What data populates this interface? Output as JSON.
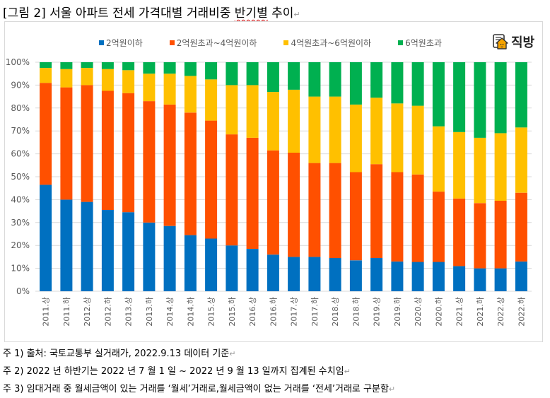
{
  "title": {
    "text": "[그림 2] 서울 아파트 전세 가격대별 거래비중",
    "squiggle_text": "반기별",
    "tail": " 추이"
  },
  "logo": {
    "text": "직방",
    "icon": "house-logo-icon"
  },
  "notes": [
    "주 1) 출처: 국토교통부 실거래가, 2022.9.13  데이터 기준",
    "주 2) 2022 년 하반기는 2022 년 7 월 1 일 ~ 2022 년 9 월 13 일까지 집계된 수치임",
    "주 3) 임대거래 중 월세금액이 있는 거래를 ‘월세’거래로,월세금액이 없는 거래를 ‘전세’거래로 구분함"
  ],
  "paragraph_mark": "↵",
  "chart_data": {
    "type": "bar",
    "stacked": true,
    "percent": true,
    "title": "",
    "xlabel": "",
    "ylabel": "",
    "ylim": [
      0,
      100
    ],
    "yticks": [
      "0%",
      "10%",
      "20%",
      "30%",
      "40%",
      "50%",
      "60%",
      "70%",
      "80%",
      "90%",
      "100%"
    ],
    "grid": true,
    "legend_position": "top",
    "categories": [
      "2011.상",
      "2011.하",
      "2012.상",
      "2012.하",
      "2013.상",
      "2013.하",
      "2014.상",
      "2014.하",
      "2015.상",
      "2015.하",
      "2016.상",
      "2016.하",
      "2017.상",
      "2017.하",
      "2018.상",
      "2018.하",
      "2019.상",
      "2019.하",
      "2020.상",
      "2020.하",
      "2021.상",
      "2021.하",
      "2022.상",
      "2022.하"
    ],
    "series": [
      {
        "name": "2억원이하",
        "color": "#0070C0",
        "values": [
          46.5,
          40,
          39,
          35.5,
          34.5,
          30,
          28.5,
          24.5,
          23,
          20,
          18.5,
          16,
          15,
          15,
          14.5,
          13.5,
          14.5,
          13,
          12.8,
          12.8,
          11,
          10,
          10,
          13
        ]
      },
      {
        "name": "2억원초과~4억원이하",
        "color": "#FF5000",
        "values": [
          44.5,
          49,
          51,
          52,
          52,
          53,
          53,
          53.5,
          51.5,
          48.5,
          48.5,
          45.5,
          45.5,
          41,
          41.5,
          38.5,
          41,
          39,
          38.2,
          30.7,
          29.5,
          28.5,
          29.5,
          30
        ]
      },
      {
        "name": "4억원초과~6억원이하",
        "color": "#FFC000",
        "values": [
          6.5,
          8,
          7.5,
          9.5,
          10,
          12,
          13.5,
          16,
          18,
          21.5,
          23,
          25.5,
          27.5,
          29,
          29,
          29.5,
          29,
          30,
          30,
          28.5,
          29,
          28.5,
          29.5,
          28.5
        ]
      },
      {
        "name": "6억원초과",
        "color": "#00B050",
        "values": [
          2.5,
          3,
          2.5,
          3,
          3.5,
          5,
          5,
          6,
          7.5,
          10,
          10,
          13,
          12,
          15,
          15,
          18.5,
          15.5,
          18,
          19,
          28,
          30.5,
          33,
          31,
          28.5
        ]
      }
    ]
  }
}
